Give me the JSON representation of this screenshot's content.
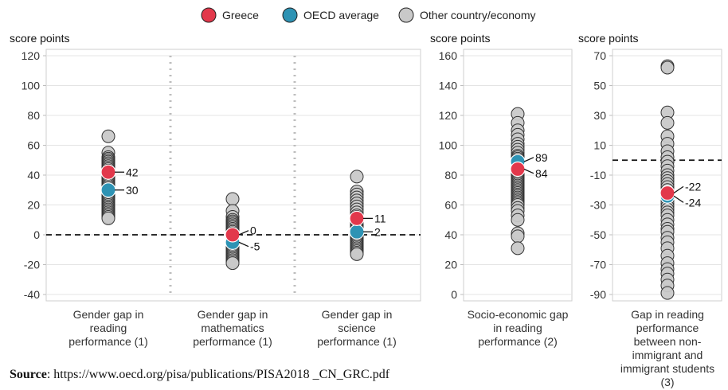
{
  "legend": [
    {
      "label": "Greece",
      "color": "#e2384b"
    },
    {
      "label": "OECD average",
      "color": "#2e93b4"
    },
    {
      "label": "Other country/economy",
      "color": "#c9c9c9"
    }
  ],
  "source": {
    "label": "Source",
    "text": ": https://www.oecd.org/pisa/publications/PISA2018 _CN_GRC.pdf"
  },
  "chart_data": [
    {
      "type": "scatter",
      "ylabel": "score points",
      "ylim": [
        -40,
        120
      ],
      "yticks": [
        120,
        100,
        80,
        60,
        40,
        20,
        0,
        -20,
        -40
      ],
      "reference_line": 0,
      "grid": true,
      "groups": [
        {
          "label_lines": [
            "Gender gap in",
            "reading",
            "performance (1)"
          ],
          "others": [
            66,
            55,
            52,
            51,
            50,
            49,
            48,
            47,
            46,
            45,
            44,
            43,
            41,
            40,
            39,
            38,
            37,
            36,
            35,
            34,
            33,
            32,
            31,
            29,
            28,
            27,
            26,
            25,
            24,
            23,
            22,
            21,
            20,
            19,
            18,
            17,
            16,
            15,
            14,
            13,
            12,
            11
          ],
          "oecd": 30,
          "greece": 42,
          "oecd_label": "30",
          "greece_label": "42"
        },
        {
          "label_lines": [
            "Gender gap in",
            "mathematics",
            "performance (1)"
          ],
          "others": [
            24,
            16,
            12,
            10,
            9,
            8,
            7,
            6,
            5,
            4,
            3,
            2,
            1,
            -1,
            -2,
            -3,
            -4,
            -6,
            -7,
            -8,
            -9,
            -10,
            -11,
            -12,
            -13,
            -14,
            -15,
            -16,
            -17,
            -18,
            -19
          ],
          "oecd": -5,
          "greece": 0,
          "oecd_label": "-5",
          "greece_label": "0"
        },
        {
          "label_lines": [
            "Gender gap in",
            "science",
            "performance (1)"
          ],
          "others": [
            39,
            29,
            27,
            25,
            23,
            21,
            19,
            17,
            15,
            13,
            12,
            10,
            9,
            7,
            6,
            5,
            4,
            3,
            1,
            0,
            -1,
            -2,
            -3,
            -4,
            -5,
            -6,
            -7,
            -8,
            -9,
            -10,
            -11,
            -12,
            -13
          ],
          "oecd": 2,
          "greece": 11,
          "oecd_label": "2",
          "greece_label": "11"
        }
      ]
    },
    {
      "type": "scatter",
      "ylabel": "score points",
      "ylim": [
        0,
        160
      ],
      "yticks": [
        160,
        140,
        120,
        100,
        80,
        60,
        40,
        20,
        0
      ],
      "grid": true,
      "groups": [
        {
          "label_lines": [
            "Socio-economic gap",
            "in reading",
            "performance (2)"
          ],
          "others": [
            121,
            115,
            110,
            107,
            104,
            101,
            99,
            97,
            95,
            93,
            92,
            91,
            90,
            88,
            87,
            86,
            85,
            83,
            82,
            81,
            80,
            79,
            78,
            77,
            76,
            75,
            74,
            73,
            72,
            71,
            70,
            69,
            68,
            67,
            66,
            65,
            64,
            63,
            62,
            61,
            60,
            58,
            56,
            53,
            50,
            41,
            39,
            31
          ],
          "oecd": 89,
          "greece": 84,
          "oecd_label": "89",
          "greece_label": "84"
        }
      ]
    },
    {
      "type": "scatter",
      "ylabel": "score points",
      "ylim": [
        -90,
        70
      ],
      "yticks": [
        70,
        50,
        30,
        10,
        -10,
        -30,
        -50,
        -70,
        -90
      ],
      "reference_line": 0,
      "grid": true,
      "groups": [
        {
          "label_lines": [
            "Gap in reading",
            "performance",
            "between non-",
            "immigrant and",
            "immigrant students",
            "(3)"
          ],
          "others": [
            63,
            62,
            32,
            25,
            16,
            11,
            6,
            2,
            -1,
            -4,
            -7,
            -10,
            -12,
            -14,
            -16,
            -18,
            -20,
            -22,
            -25,
            -27,
            -29,
            -31,
            -33,
            -35,
            -37,
            -40,
            -43,
            -46,
            -48,
            -52,
            -55,
            -59,
            -64,
            -69,
            -73,
            -76,
            -80,
            -84,
            -89
          ],
          "oecd": -24,
          "greece": -22,
          "oecd_label": "-24",
          "greece_label": "-22"
        }
      ]
    }
  ]
}
